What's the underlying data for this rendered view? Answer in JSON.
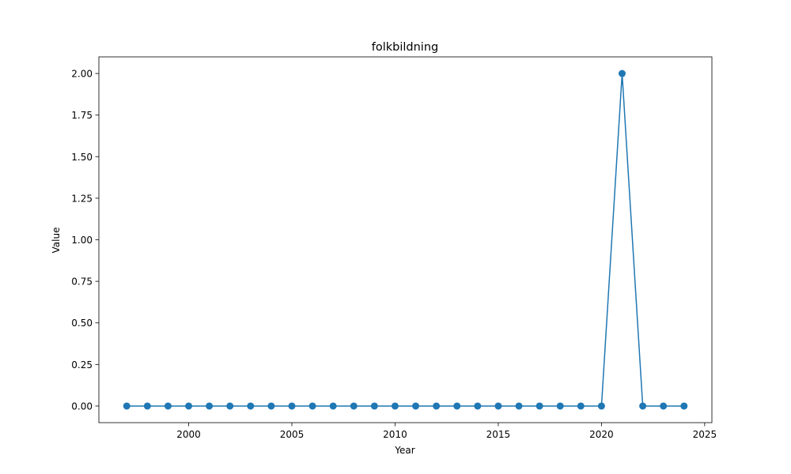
{
  "chart_data": {
    "type": "line",
    "title": "folkbildning",
    "xlabel": "Year",
    "ylabel": "Value",
    "x": [
      1997,
      1998,
      1999,
      2000,
      2001,
      2002,
      2003,
      2004,
      2005,
      2006,
      2007,
      2008,
      2009,
      2010,
      2011,
      2012,
      2013,
      2014,
      2015,
      2016,
      2017,
      2018,
      2019,
      2020,
      2021,
      2022,
      2023,
      2024
    ],
    "series": [
      {
        "values": [
          0,
          0,
          0,
          0,
          0,
          0,
          0,
          0,
          0,
          0,
          0,
          0,
          0,
          0,
          0,
          0,
          0,
          0,
          0,
          0,
          0,
          0,
          0,
          0,
          2,
          0,
          0,
          0
        ],
        "color": "#1f77b4",
        "marker": "circle"
      }
    ],
    "xlim": [
      1995.65,
      2025.35
    ],
    "ylim": [
      -0.1,
      2.1
    ],
    "xticks": [
      2000,
      2005,
      2010,
      2015,
      2020,
      2025
    ],
    "yticks": [
      0.0,
      0.25,
      0.5,
      0.75,
      1.0,
      1.25,
      1.5,
      1.75,
      2.0
    ],
    "xtick_labels": [
      "2000",
      "2005",
      "2010",
      "2015",
      "2020",
      "2025"
    ],
    "ytick_labels": [
      "0.00",
      "0.25",
      "0.50",
      "0.75",
      "1.00",
      "1.25",
      "1.50",
      "1.75",
      "2.00"
    ],
    "grid": false,
    "legend": "none"
  }
}
